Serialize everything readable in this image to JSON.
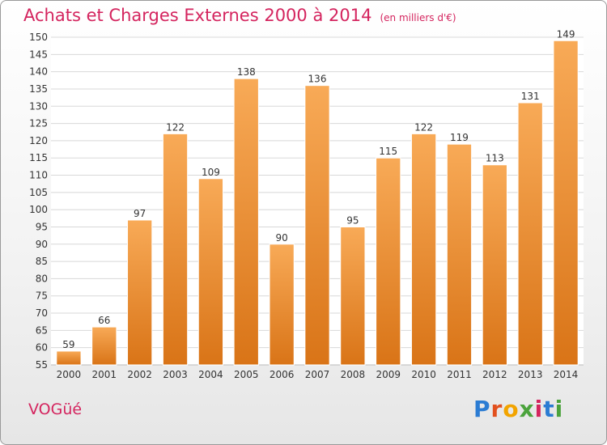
{
  "header": {
    "title": "Achats et Charges Externes 2000 à 2014",
    "unit": "(en milliers d'€)"
  },
  "footer": {
    "commune": "VOGüé",
    "logo_letters": [
      "P",
      "r",
      "o",
      "x",
      "i",
      "t",
      "i"
    ],
    "logo_colors": [
      "#2b7cd3",
      "#e2501e",
      "#f2a400",
      "#4ba33c",
      "#d4245e",
      "#2b7cd3",
      "#4ba33c"
    ]
  },
  "colors": {
    "bar_top": "#f8aa57",
    "bar_bottom": "#d97417",
    "grid": "#d8d8d8",
    "axis_text": "#333333",
    "accent": "#d4245e"
  },
  "chart_data": {
    "type": "bar",
    "title": "Achats et Charges Externes 2000 à 2014",
    "subtitle": "(en milliers d'€)",
    "categories": [
      "2000",
      "2001",
      "2002",
      "2003",
      "2004",
      "2005",
      "2006",
      "2007",
      "2008",
      "2009",
      "2010",
      "2011",
      "2012",
      "2013",
      "2014"
    ],
    "values": [
      59,
      66,
      97,
      122,
      109,
      138,
      90,
      136,
      95,
      115,
      122,
      119,
      113,
      131,
      149
    ],
    "ylim": [
      55,
      150
    ],
    "ytick_step": 5,
    "grid": true,
    "legend": "none"
  }
}
